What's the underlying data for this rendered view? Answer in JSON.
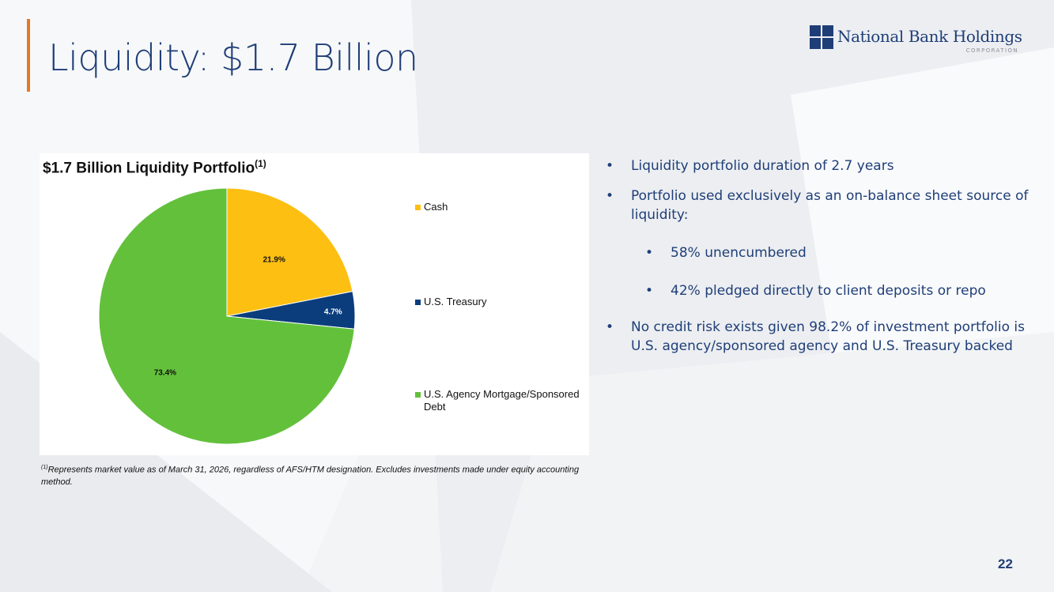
{
  "slide": {
    "title": "Liquidity: $1.7 Billion",
    "page_number": "22",
    "accent_color": "#e87722",
    "title_color": "#1f3e78"
  },
  "logo": {
    "name": "National Bank Holdings",
    "subtitle": "CORPORATION",
    "icon": "four-square-mark-icon"
  },
  "chart_data": {
    "type": "pie",
    "title": "$1.7 Billion Liquidity Portfolio",
    "title_footnote_marker": "(1)",
    "legend_placement": "right",
    "slices": [
      {
        "name": "Cash",
        "value": 21.9,
        "label": "21.9%",
        "color": "#fdbf12"
      },
      {
        "name": "U.S. Treasury",
        "value": 4.7,
        "label": "4.7%",
        "color": "#0b3d7c"
      },
      {
        "name": "U.S. Agency Mortgage/Sponsored Debt",
        "value": 73.4,
        "label": "73.4%",
        "color": "#63c03b"
      }
    ]
  },
  "footnote": {
    "marker": "(1)",
    "text": "Represents market value as of March 31, 2026, regardless of AFS/HTM designation. Excludes investments made under equity accounting method."
  },
  "bullets": [
    {
      "text": "Liquidity portfolio duration of 2.7 years",
      "level": 1
    },
    {
      "text": "Portfolio used exclusively as an on-balance sheet source of liquidity:",
      "level": 1
    },
    {
      "text": "58% unencumbered",
      "level": 2
    },
    {
      "text": "42% pledged directly to client deposits or repo",
      "level": 2
    },
    {
      "text": "No credit risk exists given 98.2% of investment portfolio is U.S. agency/sponsored agency and U.S. Treasury backed",
      "level": 1
    }
  ]
}
